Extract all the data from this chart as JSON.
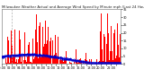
{
  "title": "Milwaukee Weather Actual and Average Wind Speed by Minute mph (Last 24 Hours)",
  "n_points": 1440,
  "ylim": [
    0,
    35
  ],
  "yticks": [
    0,
    5,
    10,
    15,
    20,
    25,
    30,
    35
  ],
  "bar_color": "#ff0000",
  "avg_color": "#0000cc",
  "bg_color": "#ffffff",
  "border_color": "#888888",
  "title_fontsize": 2.8,
  "axis_fontsize": 2.5,
  "seed": 42,
  "vline_x": 120
}
